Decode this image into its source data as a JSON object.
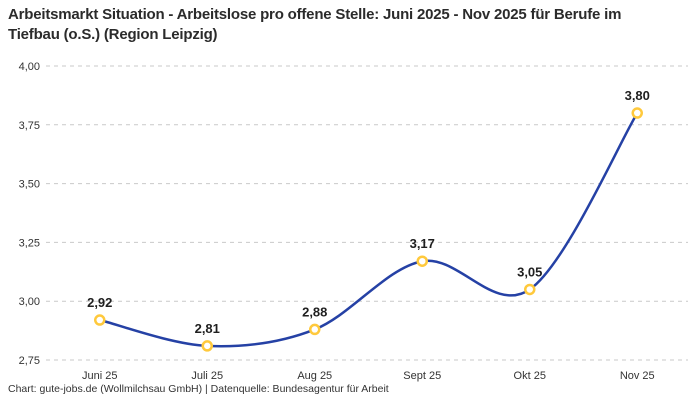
{
  "title": "Arbeitsmarkt Situation - Arbeitslose pro offene Stelle: Juni 2025 - Nov 2025 für Berufe im Tiefbau (o.S.) (Region Leipzig)",
  "footer": "Chart: gute-jobs.de (Wollmilchsau GmbH) | Datenquelle: Bundesagentur für Arbeit",
  "chart_data": {
    "type": "line",
    "title": "Arbeitsmarkt Situation - Arbeitslose pro offene Stelle: Juni 2025 - Nov 2025 für Berufe im Tiefbau (o.S.) (Region Leipzig)",
    "categories": [
      "Juni 25",
      "Juli 25",
      "Aug 25",
      "Sept 25",
      "Okt 25",
      "Nov 25"
    ],
    "series": [
      {
        "name": "Arbeitslose pro offene Stelle",
        "values": [
          2.92,
          2.81,
          2.88,
          3.17,
          3.05,
          3.8
        ],
        "value_labels": [
          "2,92",
          "2,81",
          "2,88",
          "3,17",
          "3,05",
          "3,80"
        ]
      }
    ],
    "xlabel": "",
    "ylabel": "",
    "ylim": [
      2.75,
      4.0
    ],
    "y_ticks": [
      2.75,
      3.0,
      3.25,
      3.5,
      3.75,
      4.0
    ],
    "y_tick_labels": [
      "2,75",
      "3,00",
      "3,25",
      "3,50",
      "3,75",
      "4,00"
    ],
    "grid": "horizontal-dashed",
    "legend": "none",
    "curve": "smooth-spline",
    "colors": {
      "line": "#2541A5",
      "marker_ring": "#FFC93C",
      "marker_fill": "#FFFFFF",
      "gridline": "#C9C9C9",
      "title_text": "#2B2B2B",
      "tick_text": "#333333",
      "label_text": "#1F1F1F",
      "background": "#FFFFFF"
    }
  }
}
